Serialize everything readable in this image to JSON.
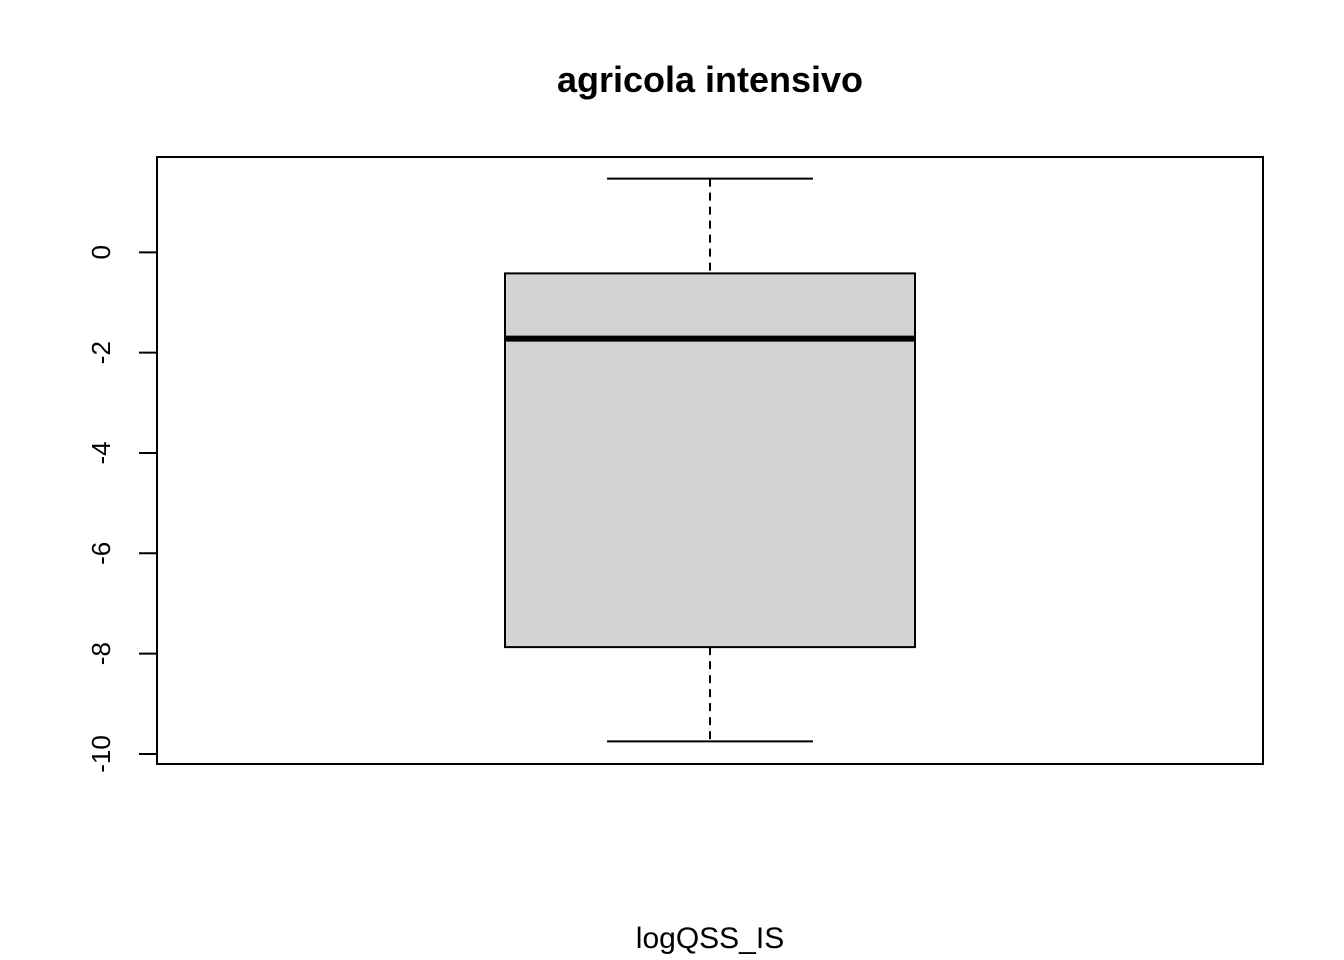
{
  "chart_data": {
    "type": "box",
    "title": "agricola intensivo",
    "xlabel": "logQSS_IS",
    "ylabel": "",
    "ylim": [
      -10.2,
      1.9
    ],
    "yticks": [
      0,
      -2,
      -4,
      -6,
      -8,
      -10
    ],
    "ytick_labels": [
      "0",
      "-2",
      "-4",
      "-6",
      "-8",
      "-10"
    ],
    "grid": false,
    "colors": {
      "box_fill": "#d3d3d3",
      "stroke": "#000000"
    },
    "box": {
      "whisker_high": 1.47,
      "q3": -0.42,
      "median": -1.72,
      "q1": -7.87,
      "whisker_low": -9.75
    }
  }
}
